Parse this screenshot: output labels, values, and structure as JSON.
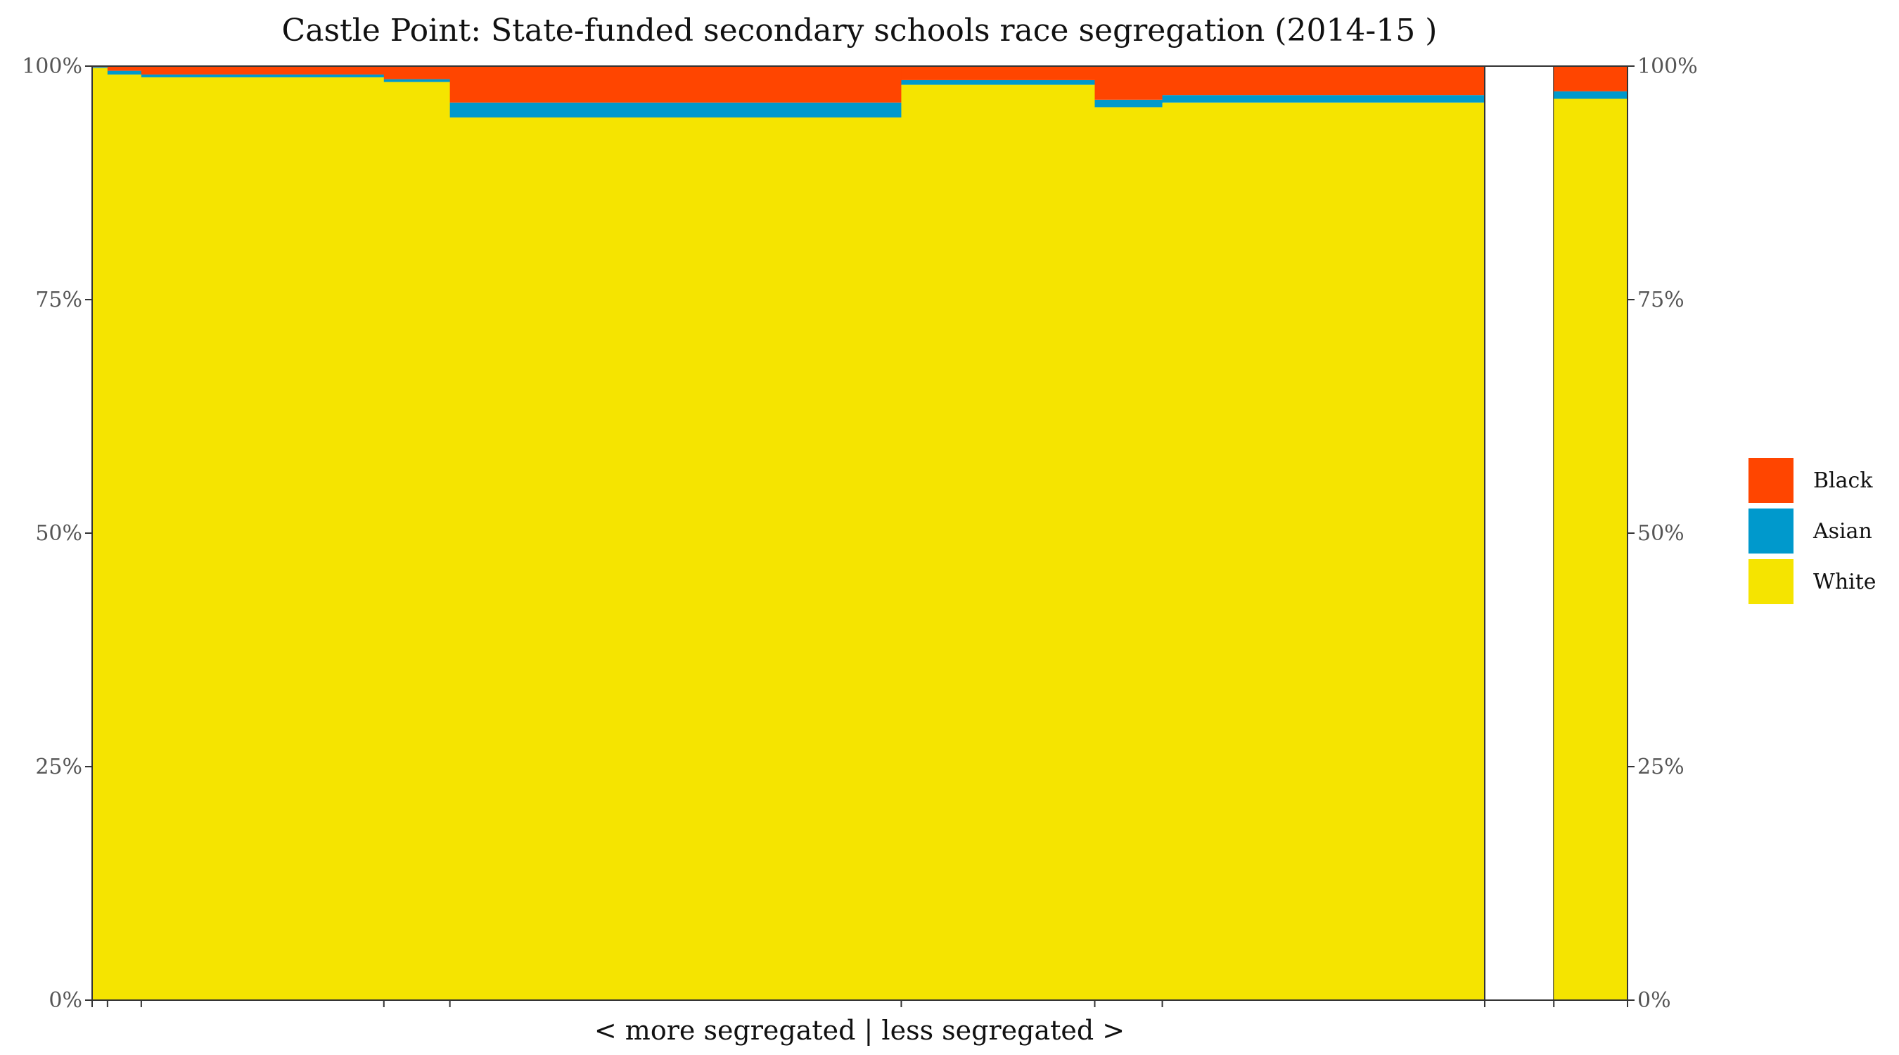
{
  "chart_data": {
    "type": "bar",
    "variant": "stacked-mosaic (variable-width columns, 100% stacked)",
    "title": "Castle Point: State-funded secondary schools race segregation (2014-15 )",
    "xlabel": "< more segregated | less segregated >",
    "ylabel": "",
    "ylim": [
      0,
      100
    ],
    "y_ticks": [
      "0%",
      "25%",
      "50%",
      "75%",
      "100%"
    ],
    "y_ticks_right": [
      "0%",
      "25%",
      "50%",
      "75%",
      "100%"
    ],
    "grid": false,
    "legend_position": "right",
    "legend": [
      {
        "name": "Black",
        "color": "#FF4500"
      },
      {
        "name": "Asian",
        "color": "#0099CC"
      },
      {
        "name": "White",
        "color": "#F5E400"
      }
    ],
    "colors": {
      "Black": "#FF4500",
      "Asian": "#0099CC",
      "White": "#F5E400",
      "other": "#F5E400"
    },
    "x_cumulative_share": [
      0,
      1.0,
      3.2,
      19.0,
      23.3,
      52.7,
      65.3,
      69.7,
      90.7,
      95.2,
      100
    ],
    "columns": [
      {
        "x_start": 0.0,
        "x_end": 1.0,
        "white": 99.7,
        "asian": 0.1,
        "black": 0.1,
        "total": 100
      },
      {
        "x_start": 1.0,
        "x_end": 3.2,
        "white": 99.0,
        "asian": 0.4,
        "black": 0.5,
        "total": 100
      },
      {
        "x_start": 3.2,
        "x_end": 19.0,
        "white": 98.8,
        "asian": 0.3,
        "black": 0.9,
        "total": 100
      },
      {
        "x_start": 19.0,
        "x_end": 23.3,
        "white": 98.3,
        "asian": 0.3,
        "black": 1.4,
        "total": 100
      },
      {
        "x_start": 23.3,
        "x_end": 52.7,
        "white": 94.5,
        "asian": 1.6,
        "black": 3.9,
        "total": 100
      },
      {
        "x_start": 52.7,
        "x_end": 65.3,
        "white": 98.0,
        "asian": 0.5,
        "black": 1.5,
        "total": 100
      },
      {
        "x_start": 65.3,
        "x_end": 69.7,
        "white": 95.6,
        "asian": 0.8,
        "black": 3.6,
        "total": 100
      },
      {
        "x_start": 69.7,
        "x_end": 90.7,
        "white": 96.1,
        "asian": 0.8,
        "black": 3.1,
        "total": 100
      },
      {
        "x_start": 90.7,
        "x_end": 95.2,
        "white": 0,
        "asian": 0,
        "black": 0,
        "total": 0
      },
      {
        "x_start": 95.2,
        "x_end": 100,
        "white": 96.5,
        "asian": 0.8,
        "black": 2.7,
        "total": 100
      }
    ]
  }
}
